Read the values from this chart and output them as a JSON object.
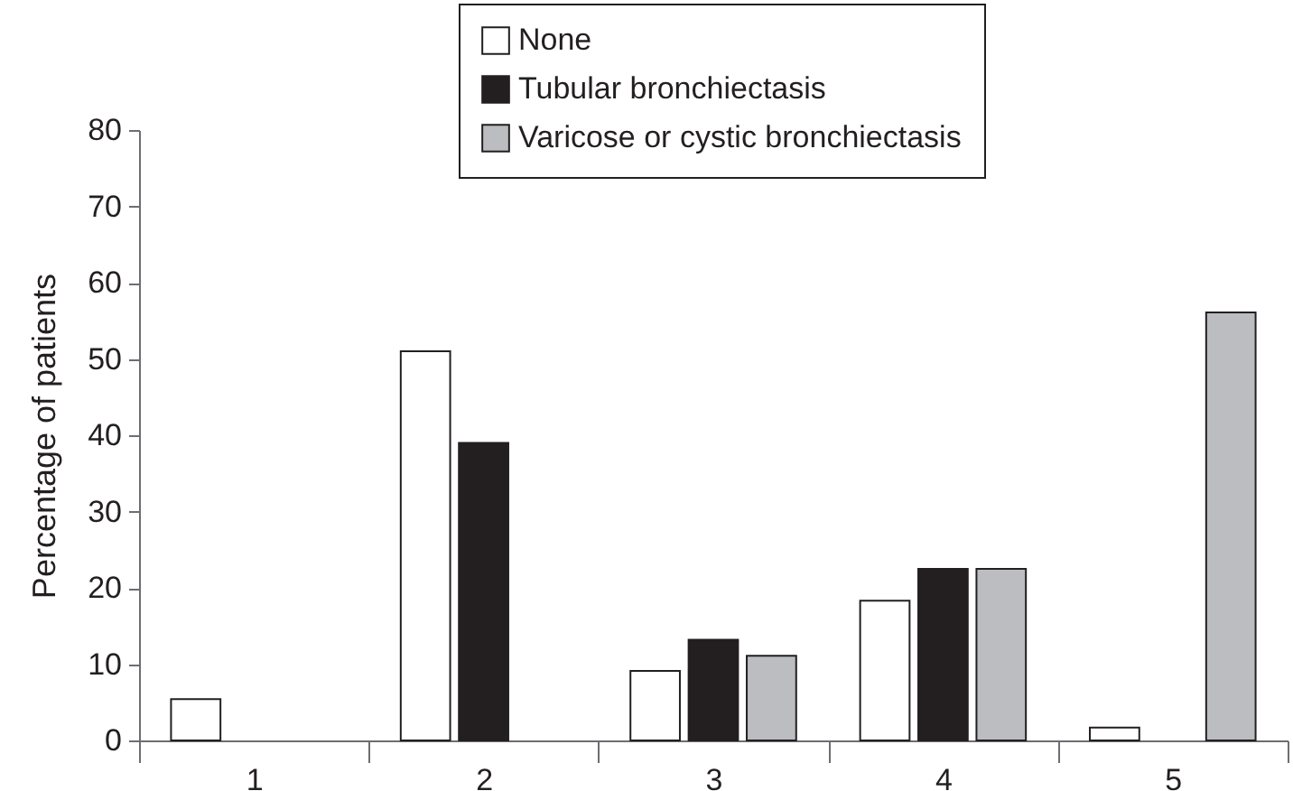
{
  "chart_data": {
    "type": "bar",
    "categories": [
      "1",
      "2",
      "3",
      "4",
      "5"
    ],
    "ylabel": "Percentage of patients",
    "ylim": [
      0,
      80
    ],
    "yticks": [
      0,
      10,
      20,
      30,
      40,
      50,
      60,
      70,
      80
    ],
    "legend": "top",
    "series": [
      {
        "name": "None",
        "color": "#ffffff",
        "values": [
          5.4,
          51,
          9.1,
          18.3,
          1.7
        ]
      },
      {
        "name": "Tubular bronchiectasis",
        "color": "#231f20",
        "values": [
          null,
          39,
          13.2,
          22.5,
          null
        ]
      },
      {
        "name": "Varicose or cystic bronchiectasis",
        "color": "#bcbdc0",
        "values": [
          null,
          null,
          11.1,
          22.5,
          56.1
        ]
      }
    ]
  }
}
